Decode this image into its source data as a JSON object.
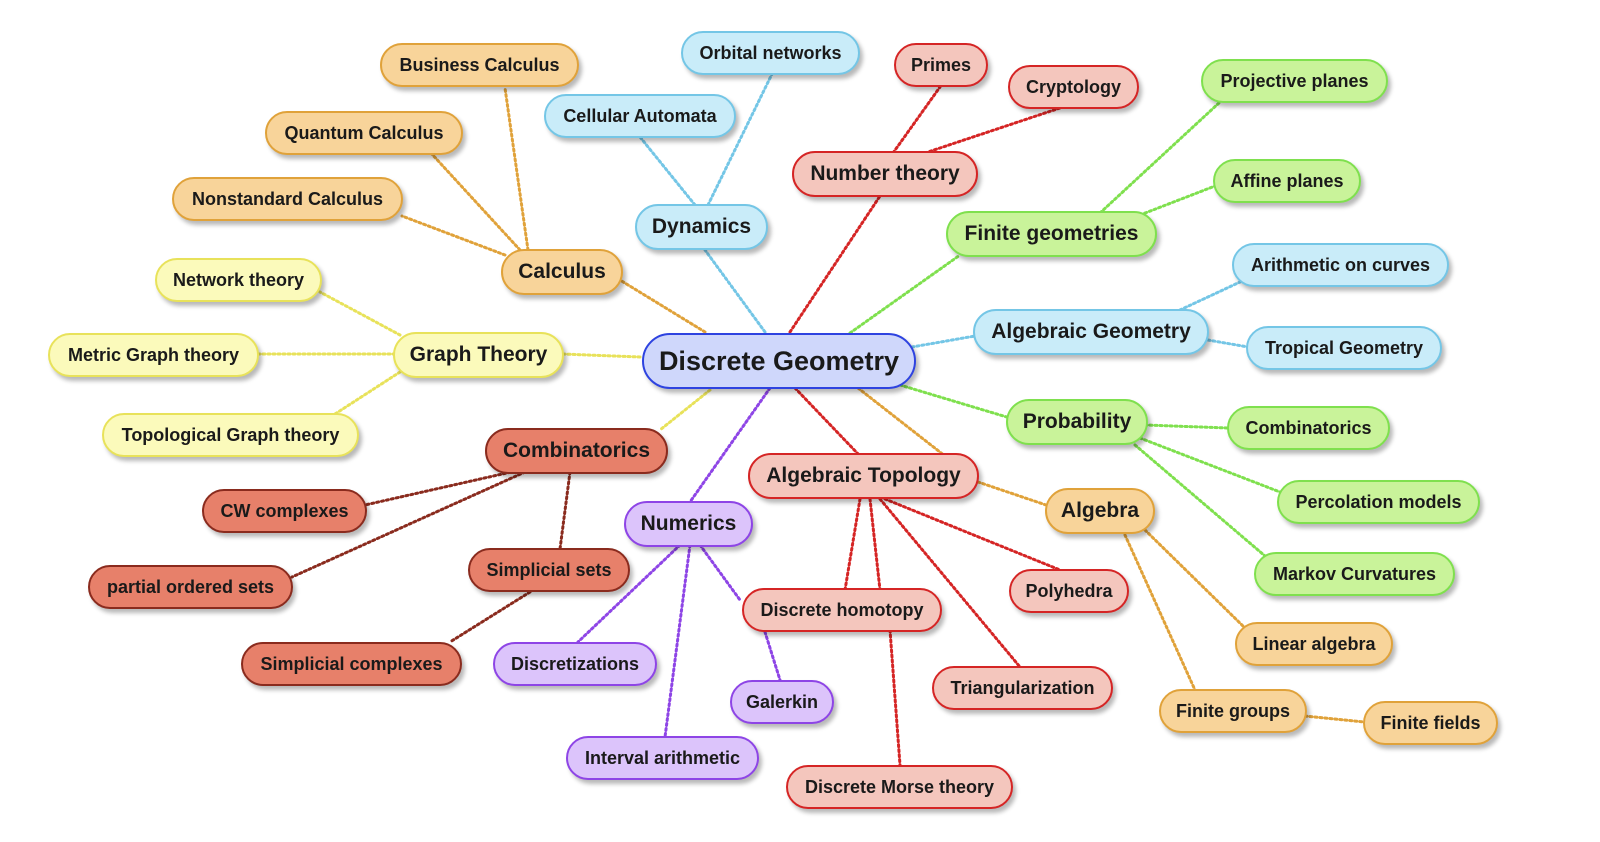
{
  "root": {
    "label": "Discrete Geometry",
    "color": "#cfd7fb"
  },
  "colors": {
    "orange": "#e0a23a",
    "blue": "#74c6e6",
    "red": "#d52525",
    "green": "#7fe04e",
    "yellow": "#e8e25a",
    "brick": "#8a2b1e",
    "purple": "#8e45e6"
  },
  "branches": [
    {
      "label": "Calculus",
      "color": "orange",
      "children": [
        "Business Calculus",
        "Quantum Calculus",
        "Nonstandard Calculus"
      ]
    },
    {
      "label": "Dynamics",
      "color": "blue",
      "children": [
        "Orbital networks",
        "Cellular Automata"
      ]
    },
    {
      "label": "Number theory",
      "color": "red",
      "children": [
        "Primes",
        "Cryptology"
      ]
    },
    {
      "label": "Finite geometries",
      "color": "green",
      "children": [
        "Projective planes",
        "Affine planes"
      ]
    },
    {
      "label": "Algebraic Geometry",
      "color": "blue",
      "children": [
        "Arithmetic on curves",
        "Tropical Geometry"
      ]
    },
    {
      "label": "Probability",
      "color": "green",
      "children": [
        "Combinatorics",
        "Percolation models",
        "Markov Curvatures"
      ]
    },
    {
      "label": "Algebra",
      "color": "orange",
      "children": [
        "Linear algebra",
        "Finite groups",
        "Finite fields"
      ]
    },
    {
      "label": "Algebraic Topology",
      "color": "red",
      "children": [
        "Polyhedra",
        "Triangularization",
        "Discrete Morse theory",
        "Discrete homotopy"
      ]
    },
    {
      "label": "Numerics",
      "color": "purple",
      "children": [
        "Discretizations",
        "Galerkin",
        "Interval arithmetic"
      ]
    },
    {
      "label": "Combinatorics",
      "color": "brick",
      "children": [
        "CW complexes",
        "partial ordered sets",
        "Simplicial sets",
        "Simplicial complexes"
      ]
    },
    {
      "label": "Graph Theory",
      "color": "yellow",
      "children": [
        "Network theory",
        "Metric Graph theory",
        "Topological Graph theory"
      ]
    }
  ]
}
